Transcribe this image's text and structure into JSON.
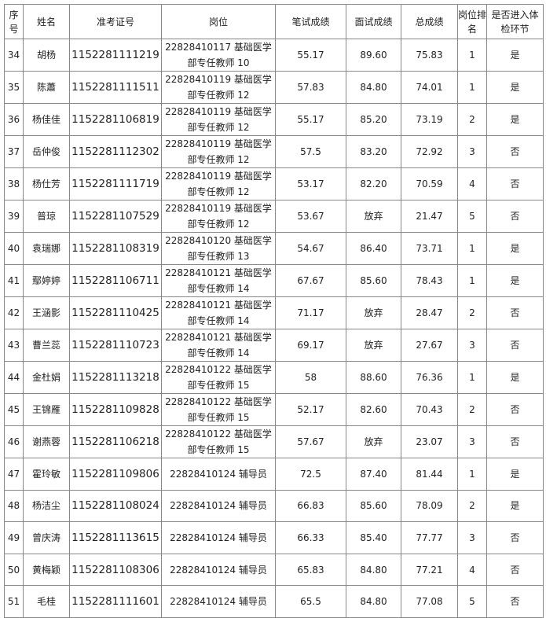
{
  "headers": [
    "序号",
    "姓名",
    "准考证号",
    "岗位",
    "笔试成绩",
    "面试成绩",
    "总成绩",
    "岗位排名",
    "是否进入体检环节"
  ],
  "rows": [
    [
      "34",
      "胡杨",
      "1152281111219",
      "22828410117 基础医学部专任教师 10",
      "55.17",
      "89.60",
      "75.83",
      "1",
      "是"
    ],
    [
      "35",
      "陈蕭",
      "1152281111511",
      "22828410119 基础医学部专任教师 12",
      "57.83",
      "84.80",
      "74.01",
      "1",
      "是"
    ],
    [
      "36",
      "杨佳佳",
      "1152281106819",
      "22828410119 基础医学部专任教师 12",
      "55.17",
      "85.20",
      "73.19",
      "2",
      "是"
    ],
    [
      "37",
      "岳仲俊",
      "1152281112302",
      "22828410119 基础医学部专任教师 12",
      "57.5",
      "83.20",
      "72.92",
      "3",
      "否"
    ],
    [
      "38",
      "杨仕芳",
      "1152281111719",
      "22828410119 基础医学部专任教师 12",
      "53.17",
      "82.20",
      "70.59",
      "4",
      "否"
    ],
    [
      "39",
      "普琼",
      "1152281107529",
      "22828410119 基础医学部专任教师 12",
      "53.67",
      "放弃",
      "21.47",
      "5",
      "否"
    ],
    [
      "40",
      "袁瑞娜",
      "1152281108319",
      "22828410120 基础医学部专任教师 13",
      "54.67",
      "86.40",
      "73.71",
      "1",
      "是"
    ],
    [
      "41",
      "鄢婷婷",
      "1152281106711",
      "22828410121 基础医学部专任教师 14",
      "67.67",
      "85.60",
      "78.43",
      "1",
      "是"
    ],
    [
      "42",
      "王涵影",
      "1152281110425",
      "22828410121 基础医学部专任教师 14",
      "71.17",
      "放弃",
      "28.47",
      "2",
      "否"
    ],
    [
      "43",
      "曹兰蕊",
      "1152281110723",
      "22828410121 基础医学部专任教师 14",
      "69.17",
      "放弃",
      "27.67",
      "3",
      "否"
    ],
    [
      "44",
      "金杜娟",
      "1152281113218",
      "22828410122 基础医学部专任教师 15",
      "58",
      "88.60",
      "76.36",
      "1",
      "是"
    ],
    [
      "45",
      "王锦雁",
      "1152281109828",
      "22828410122 基础医学部专任教师 15",
      "52.17",
      "82.60",
      "70.43",
      "2",
      "否"
    ],
    [
      "46",
      "谢燕蓉",
      "1152281106218",
      "22828410122 基础医学部专任教师 15",
      "57.67",
      "放弃",
      "23.07",
      "3",
      "否"
    ],
    [
      "47",
      "霍玲敏",
      "1152281109806",
      "22828410124 辅导员",
      "72.5",
      "87.40",
      "81.44",
      "1",
      "是"
    ],
    [
      "48",
      "杨洁尘",
      "1152281108024",
      "22828410124 辅导员",
      "66.83",
      "85.60",
      "78.09",
      "2",
      "是"
    ],
    [
      "49",
      "曾庆涛",
      "1152281113615",
      "22828410124 辅导员",
      "66.33",
      "85.40",
      "77.77",
      "3",
      "否"
    ],
    [
      "50",
      "黄梅颖",
      "1152281108306",
      "22828410124 辅导员",
      "65.83",
      "84.80",
      "77.21",
      "4",
      "否"
    ],
    [
      "51",
      "毛桂",
      "1152281111601",
      "22828410124 辅导员",
      "65.5",
      "84.80",
      "77.08",
      "5",
      "否"
    ]
  ]
}
